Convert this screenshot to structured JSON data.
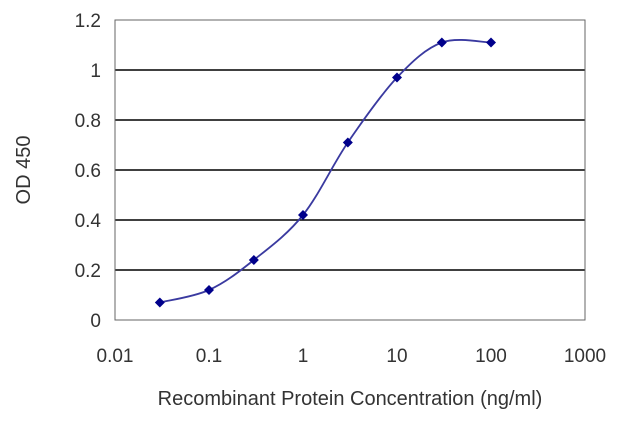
{
  "chart_data": {
    "type": "line",
    "title": "",
    "xlabel": "Recombinant Protein Concentration (ng/ml)",
    "ylabel": "OD 450",
    "x_scale": "log",
    "xlim": [
      0.01,
      1000
    ],
    "ylim": [
      0,
      1.2
    ],
    "x_ticks": [
      "0.01",
      "0.1",
      "1",
      "10",
      "100",
      "1000"
    ],
    "y_ticks": [
      "0",
      "0.2",
      "0.4",
      "0.6",
      "0.8",
      "1",
      "1.2"
    ],
    "grid": "horizontal",
    "legend": "none",
    "series": [
      {
        "x": [
          0.03,
          0.1,
          0.3,
          1,
          3,
          10,
          30,
          100
        ],
        "y": [
          0.07,
          0.12,
          0.24,
          0.42,
          0.71,
          0.97,
          1.11,
          1.11
        ]
      }
    ],
    "colors": {
      "line": "#3a3aa0",
      "marker": "#00008b",
      "grid": "#000000",
      "frame": "#666666"
    }
  }
}
